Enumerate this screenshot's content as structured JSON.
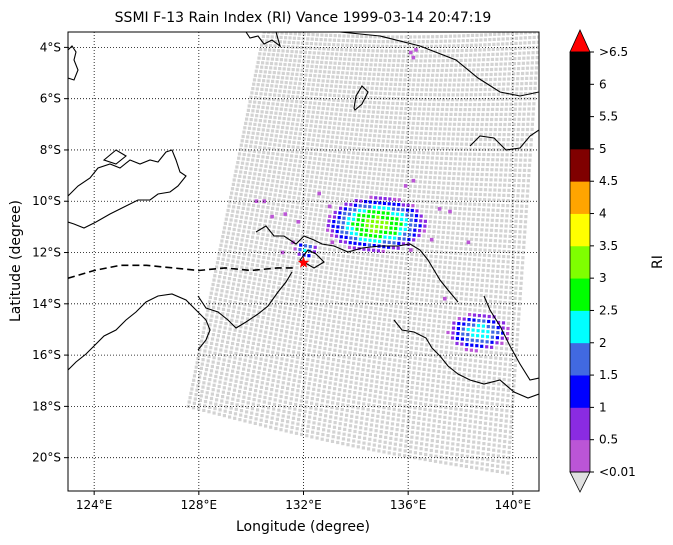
{
  "chart_data": {
    "type": "heatmap",
    "title": "SSMI F-13 Rain Index (RI) Vance 1999-03-14 20:47:19",
    "xlabel": "Longitude (degree)",
    "ylabel": "Latitude (degree)",
    "xlim": [
      123.0,
      141.0
    ],
    "ylim": [
      -21.3,
      -3.4
    ],
    "x_ticks": [
      124,
      128,
      132,
      136,
      140
    ],
    "x_tick_labels": [
      "124°E",
      "128°E",
      "132°E",
      "136°E",
      "140°E"
    ],
    "y_ticks": [
      -4,
      -6,
      -8,
      -10,
      -12,
      -14,
      -16,
      -18,
      -20
    ],
    "y_tick_labels": [
      "4°S",
      "6°S",
      "8°S",
      "10°S",
      "12°S",
      "14°S",
      "16°S",
      "18°S",
      "20°S"
    ],
    "grid": true,
    "colorbar": {
      "label": "RI",
      "tick_labels": [
        "<0.01",
        "0.5",
        "1",
        "1.5",
        "2",
        "2.5",
        "3",
        "3.5",
        "4",
        "4.5",
        "5",
        "5.5",
        "6",
        ">6.5"
      ],
      "colors": [
        "#bb55d6",
        "#8a2be2",
        "#0000ff",
        "#4169e1",
        "#00ffff",
        "#00ff00",
        "#7fff00",
        "#ffff00",
        "#ffa500",
        "#800000",
        "#000000",
        "#000000",
        "#000000"
      ],
      "under_color": "#e0e0e0",
      "over_color": "#ff0000"
    },
    "swath": {
      "no_rain_color": "#d3d3d3",
      "corners_lonlat": [
        [
          130.5,
          -3.4
        ],
        [
          141.0,
          -3.4
        ],
        [
          139.8,
          -20.6
        ],
        [
          127.6,
          -18.0
        ]
      ]
    },
    "storm_center": {
      "lon": 132.0,
      "lat": -12.4,
      "marker_color": "#ff0000"
    },
    "storm_track": [
      [
        123.0,
        -13.0
      ],
      [
        124.0,
        -12.7
      ],
      [
        125.0,
        -12.5
      ],
      [
        126.0,
        -12.5
      ],
      [
        127.0,
        -12.6
      ],
      [
        128.0,
        -12.7
      ],
      [
        129.0,
        -12.6
      ],
      [
        130.0,
        -12.7
      ],
      [
        131.0,
        -12.6
      ],
      [
        131.7,
        -12.6
      ]
    ],
    "rain_clusters": [
      {
        "center": [
          134.8,
          -10.9
        ],
        "radius": [
          1.8,
          1.0
        ],
        "peak": 3.2
      },
      {
        "center": [
          138.7,
          -15.1
        ],
        "radius": [
          1.1,
          0.7
        ],
        "peak": 2.3
      },
      {
        "center": [
          132.1,
          -11.9
        ],
        "radius": [
          0.4,
          0.3
        ],
        "peak": 2.1
      }
    ],
    "scattered_light_rain": [
      [
        136.1,
        -4.2
      ],
      [
        136.3,
        -4.1
      ],
      [
        136.2,
        -4.4
      ],
      [
        130.2,
        -10.0
      ],
      [
        130.5,
        -10.0
      ],
      [
        130.8,
        -10.6
      ],
      [
        131.3,
        -10.5
      ],
      [
        131.8,
        -10.8
      ],
      [
        132.6,
        -9.7
      ],
      [
        133.0,
        -10.2
      ],
      [
        135.9,
        -9.4
      ],
      [
        136.2,
        -9.2
      ],
      [
        137.2,
        -10.3
      ],
      [
        137.6,
        -10.4
      ],
      [
        136.9,
        -11.5
      ],
      [
        138.3,
        -11.6
      ],
      [
        136.1,
        -11.9
      ],
      [
        137.4,
        -13.8
      ],
      [
        133.1,
        -11.6
      ],
      [
        131.6,
        -11.6
      ],
      [
        131.2,
        -12.0
      ]
    ]
  }
}
